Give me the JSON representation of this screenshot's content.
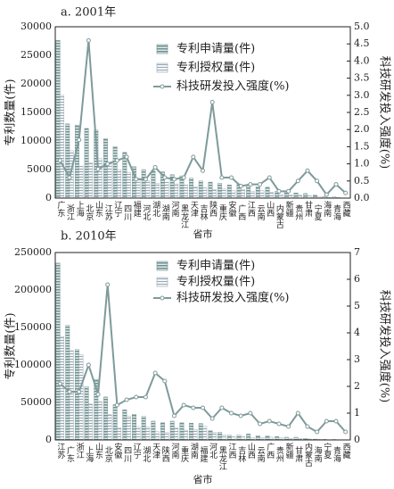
{
  "chart_data": [
    {
      "type": "bar",
      "title": "a. 2001年",
      "x_label": "省市",
      "y_label": "专利数量(件)",
      "y2_label": "科技研发投入强度(%)",
      "categories": [
        "广东",
        "浙江",
        "上海",
        "北京",
        "山东",
        "江苏",
        "辽宁",
        "四川",
        "福建",
        "河北",
        "湖北",
        "湖南",
        "河南",
        "黑龙江",
        "天津",
        "吉林",
        "陕西",
        "重庆",
        "安徽",
        "广西",
        "江西",
        "云南",
        "山西",
        "内蒙古",
        "新疆",
        "贵州",
        "甘肃",
        "宁夏",
        "海南",
        "青海",
        "西藏"
      ],
      "series": [
        {
          "name": "专利申请量(件)",
          "color": "#6f8f8f",
          "values": [
            27600,
            13000,
            12800,
            12200,
            11900,
            10400,
            9000,
            8000,
            5500,
            5000,
            4800,
            4600,
            4100,
            3900,
            3500,
            3000,
            2800,
            2600,
            2300,
            2400,
            2100,
            2000,
            1900,
            1200,
            1100,
            900,
            800,
            500,
            300,
            200,
            50
          ]
        },
        {
          "name": "专利授权量(件)",
          "color": "#9aa9b3",
          "values": [
            18000,
            8300,
            5600,
            6200,
            6900,
            6100,
            5000,
            4500,
            3500,
            3000,
            2600,
            2800,
            2500,
            2300,
            2000,
            1800,
            1500,
            1600,
            1300,
            1500,
            1200,
            1300,
            1000,
            700,
            600,
            500,
            400,
            300,
            150,
            100,
            30
          ]
        },
        {
          "name": "科技研发投入强度(%)",
          "type": "line",
          "axis": "y2",
          "color": "#7f9a9a",
          "values": [
            1.1,
            0.6,
            1.7,
            4.6,
            0.85,
            1.0,
            1.1,
            1.2,
            0.55,
            0.55,
            0.9,
            0.6,
            0.55,
            0.6,
            1.2,
            0.8,
            2.8,
            0.6,
            0.6,
            0.35,
            0.4,
            0.4,
            0.6,
            0.2,
            0.2,
            0.5,
            0.8,
            0.5,
            0.1,
            0.4,
            0.15
          ]
        }
      ],
      "ylim": [
        0,
        30000
      ],
      "yticks": [
        0,
        5000,
        10000,
        15000,
        20000,
        25000,
        30000
      ],
      "y2lim": [
        0,
        5
      ],
      "y2ticks": [
        {
          "value": 0,
          "label": "0.0"
        },
        0.5,
        {
          "value": 1,
          "label": "1.0"
        },
        1.5,
        {
          "value": 2,
          "label": "2.0"
        },
        2.5,
        {
          "value": 3,
          "label": "3.0"
        },
        3.5,
        {
          "value": 4,
          "label": "4.0"
        },
        4.5,
        {
          "value": 5,
          "label": "5.0"
        }
      ]
    },
    {
      "type": "bar",
      "title": "b. 2010年",
      "x_label": "省市",
      "y_label": "专利数量(件)",
      "y2_label": "科技研发投入强度(%)",
      "categories": [
        "江苏",
        "广东",
        "浙江",
        "上海",
        "山东",
        "北京",
        "安徽",
        "四川",
        "辽宁",
        "湖北",
        "天津",
        "陕西",
        "河南",
        "重庆",
        "湖南",
        "福建",
        "河北",
        "黑龙江",
        "江西",
        "吉林",
        "山西",
        "云南",
        "广西",
        "贵州",
        "新疆",
        "甘肃",
        "内蒙古",
        "海南",
        "宁夏",
        "青海",
        "西藏"
      ],
      "series": [
        {
          "name": "专利申请量(件)",
          "color": "#6f8f8f",
          "values": [
            235900,
            152900,
            120700,
            71200,
            80900,
            57300,
            47100,
            40200,
            34200,
            31300,
            25100,
            22900,
            25100,
            22800,
            22400,
            21900,
            12300,
            10300,
            6300,
            6400,
            7900,
            5600,
            5100,
            4400,
            3600,
            3600,
            2100,
            1000,
            700,
            600,
            100
          ]
        },
        {
          "name": "专利授权量(件)",
          "color": "#9aa9b3",
          "values": [
            138000,
            119000,
            114000,
            48000,
            51000,
            34000,
            16000,
            32000,
            17000,
            17000,
            11000,
            10000,
            16000,
            13000,
            13900,
            18000,
            10000,
            6800,
            4300,
            4300,
            3300,
            3300,
            3600,
            3100,
            1800,
            1900,
            1200,
            700,
            300,
            200,
            60
          ]
        },
        {
          "name": "科技研发投入强度(%)",
          "type": "line",
          "axis": "y2",
          "color": "#7f9a9a",
          "values": [
            2.1,
            1.8,
            1.8,
            2.8,
            1.7,
            5.8,
            1.3,
            1.5,
            1.6,
            1.6,
            2.5,
            2.2,
            0.9,
            1.3,
            1.2,
            1.2,
            0.8,
            1.2,
            1.0,
            0.9,
            1.0,
            0.6,
            0.7,
            0.6,
            0.5,
            1.0,
            0.5,
            0.3,
            0.7,
            0.7,
            0.3
          ]
        }
      ],
      "ylim": [
        0,
        250000
      ],
      "yticks": [
        0,
        50000,
        100000,
        150000,
        200000,
        250000
      ],
      "y2lim": [
        0,
        7
      ],
      "y2ticks": [
        0,
        1,
        2,
        3,
        4,
        5,
        6,
        7
      ]
    }
  ]
}
